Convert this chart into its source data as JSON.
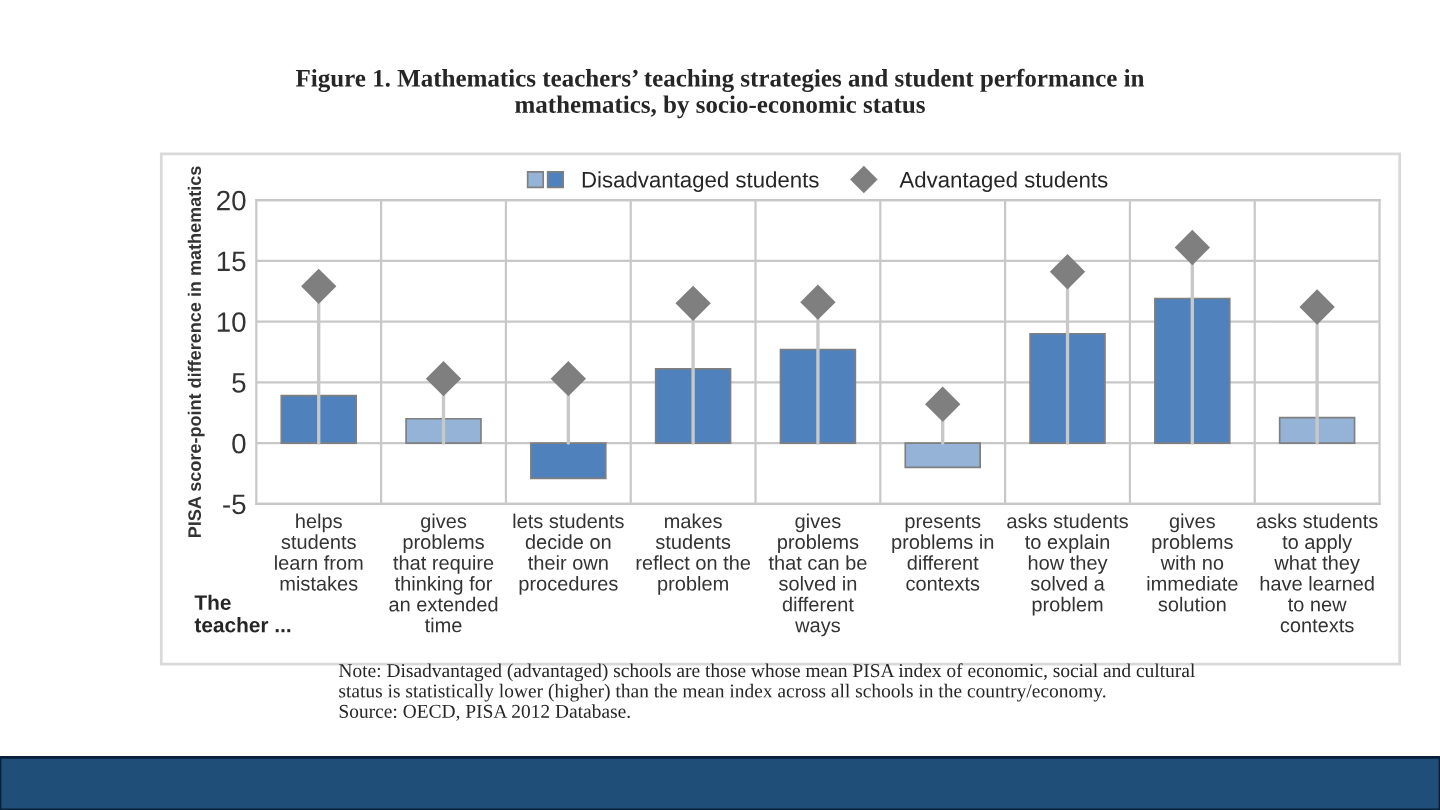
{
  "chart_data": {
    "type": "bar",
    "title": "Figure 1. Mathematics teachers’ teaching strategies and student performance in\nmathematics, by socio-economic status",
    "ylabel": "PISA score-point difference in mathematics",
    "categories": [
      "helps\nstudents\nlearn from\nmistakes",
      "gives\nproblems\nthat require\nthinking for\nan extended\ntime",
      "lets students\ndecide on\ntheir own\nprocedures",
      "makes\nstudents\nreflect on the\nproblem",
      "gives\nproblems\nthat can be\nsolved in\ndifferent\nways",
      "presents\nproblems in\ndifferent\ncontexts",
      "asks students\nto explain\nhow they\nsolved a\nproblem",
      "gives\nproblems\nwith no\nimmediate\nsolution",
      "asks students\nto apply\nwhat they\nhave learned\nto new\ncontexts"
    ],
    "series": [
      {
        "name": "Disadvantaged students",
        "colors": [
          "#4f81bd",
          "#95b3d7",
          "#4f81bd",
          "#4f81bd",
          "#4f81bd",
          "#95b3d7",
          "#4f81bd",
          "#4f81bd",
          "#95b3d7"
        ],
        "values": [
          3.9,
          2.0,
          -2.9,
          6.1,
          7.7,
          -2.0,
          9.0,
          11.9,
          2.1
        ]
      },
      {
        "name": "Advantaged students",
        "type": "lollipop",
        "color": "#7f7f7f",
        "marker": "diamond",
        "values": [
          12.9,
          5.3,
          5.3,
          11.5,
          11.6,
          3.2,
          14.1,
          16.1,
          11.2
        ]
      }
    ],
    "ylim": [
      -5,
      20
    ],
    "yticks": [
      -5,
      0,
      5,
      10,
      15,
      20
    ],
    "grid": true,
    "legend": "top",
    "annotations": [
      "The\nteacher ...",
      "Note: Disadvantaged (advantaged) schools are those whose mean PISA index of economic, social and cultural\nstatus is statistically lower (higher) than the mean index across all schools in the country/economy.\nSource: OECD, PISA 2012 Database."
    ]
  }
}
